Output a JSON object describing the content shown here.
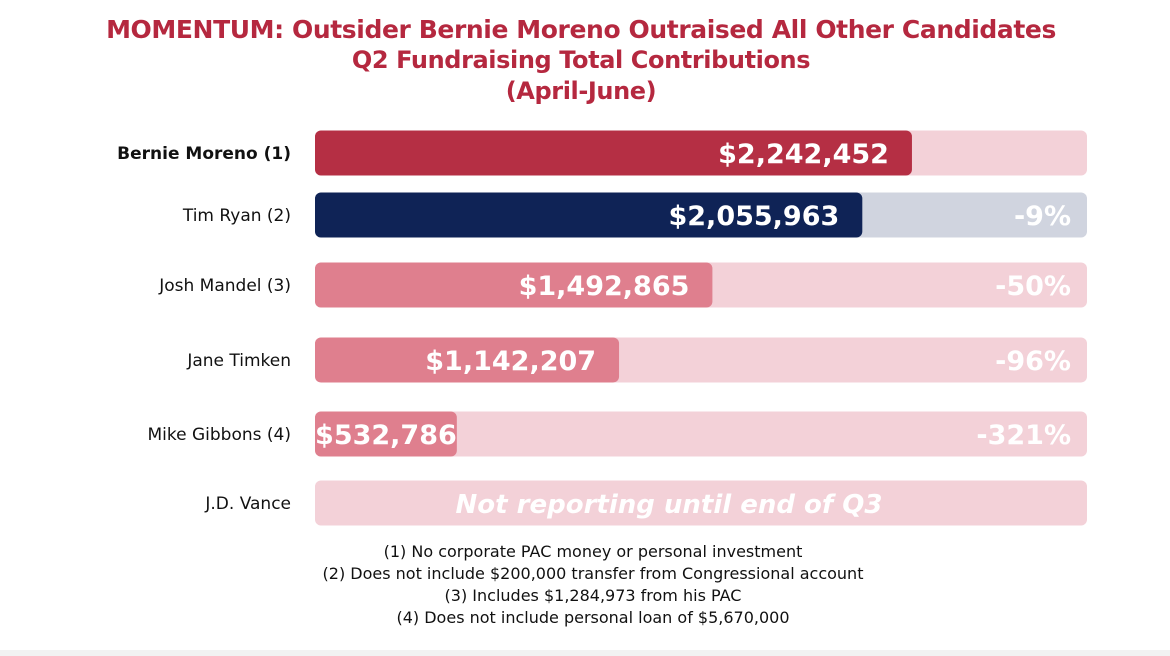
{
  "title": {
    "line1": "MOMENTUM: Outsider Bernie Moreno Outraised All Other Candidates",
    "line2": "Q2 Fundraising Total Contributions",
    "line3": "(April-June)"
  },
  "chart_data": {
    "type": "bar",
    "orientation": "horizontal",
    "categories": [
      "Bernie Moreno (1)",
      "Tim Ryan (2)",
      "Josh Mandel (3)",
      "Jane Timken",
      "Mike Gibbons (4)",
      "J.D. Vance"
    ],
    "values": [
      2242452,
      2055963,
      1492865,
      1142207,
      532786,
      null
    ],
    "value_labels": [
      "$2,242,452",
      "$2,055,963",
      "$1,492,865",
      "$1,142,207",
      "$532,786",
      ""
    ],
    "diff_labels": [
      "",
      "-9%",
      "-50%",
      "-96%",
      "-321%",
      ""
    ],
    "note_labels": [
      "",
      "",
      "",
      "",
      "",
      "Not reporting until end of Q3"
    ],
    "bar_colors": [
      "#b52f44",
      "#0f2356",
      "#df7f8e",
      "#df7f8e",
      "#df7f8e",
      "#df7f8e"
    ],
    "track_colors": [
      "#f3d1d8",
      "#d0d4df",
      "#f3d1d8",
      "#f3d1d8",
      "#f3d1d8",
      "#f3d1d8"
    ],
    "highlight_category": "Bernie Moreno (1)",
    "xlim": [
      0,
      2900000
    ],
    "grid": false,
    "legend": "none"
  },
  "footnotes": [
    "(1) No corporate PAC money or personal investment",
    "(2) Does not include $200,000 transfer from Congressional account",
    "(3) Includes $1,284,973 from his PAC",
    "(4) Does not include personal loan of $5,670,000"
  ]
}
